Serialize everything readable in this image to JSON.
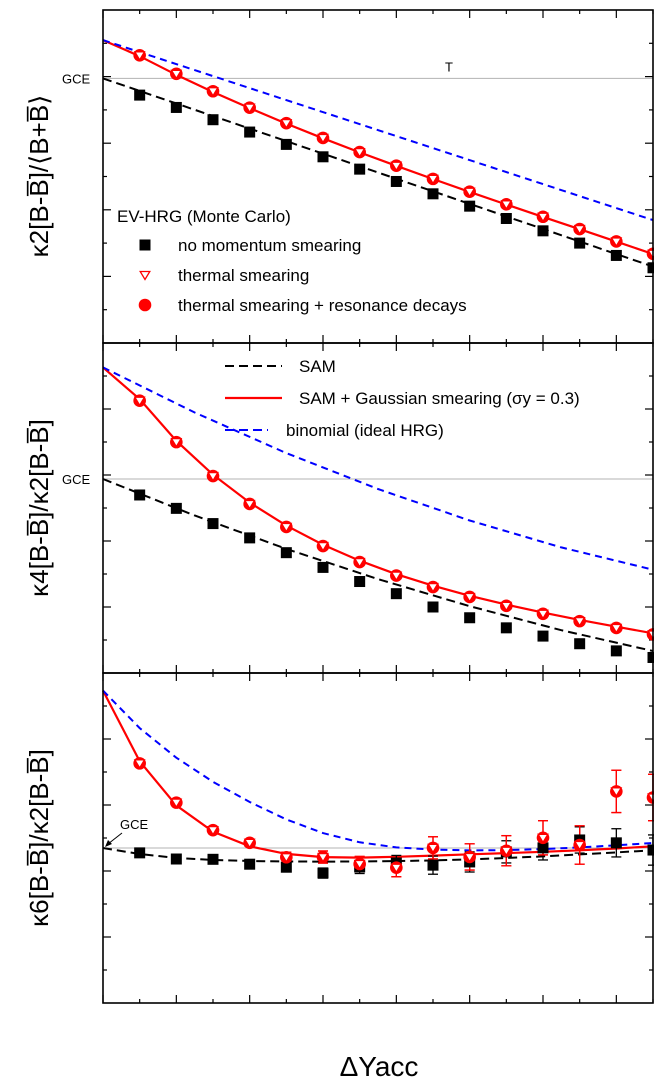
{
  "chart_data": [
    {
      "type": "line",
      "panel": "top",
      "ylabel": "κ2[B-B̅]/⟨B+B̅⟩",
      "xlabel": "ΔYacc",
      "xlim": [
        0,
        1.5
      ],
      "ylim": [
        0.58,
        1.055
      ],
      "reference_line": {
        "label": "GCE",
        "y": 0.9574
      },
      "marker_text": "T",
      "legend_title": "EV-HRG (Monte Carlo)",
      "legend": [
        {
          "label": "no momentum smearing",
          "marker": "square",
          "color": "#000000"
        },
        {
          "label": "thermal smearing",
          "marker": "open-triangle-down",
          "color": "#ff0000"
        },
        {
          "label": "thermal smearing + resonance decays",
          "marker": "circle",
          "color": "#ff0000"
        }
      ],
      "x": [
        0.1,
        0.2,
        0.3,
        0.4,
        0.5,
        0.6,
        0.7,
        0.8,
        0.9,
        1.0,
        1.1,
        1.2,
        1.3,
        1.4,
        1.5
      ],
      "series": [
        {
          "name": "no momentum smearing",
          "style": "square",
          "color": "#000000",
          "values": [
            0.9336,
            0.916,
            0.8985,
            0.8809,
            0.8633,
            0.8456,
            0.828,
            0.8104,
            0.7928,
            0.7752,
            0.7576,
            0.74,
            0.7225,
            0.7049,
            0.6873
          ]
        },
        {
          "name": "thermal smearing",
          "style": "open-triangle-down",
          "color": "#ff0000",
          "values": [
            0.9904,
            0.964,
            0.9391,
            0.9157,
            0.8936,
            0.8725,
            0.8523,
            0.8329,
            0.8141,
            0.7958,
            0.7778,
            0.7601,
            0.7425,
            0.7249,
            0.7073
          ]
        },
        {
          "name": "thermal smearing + resonance decays",
          "style": "circle",
          "color": "#ff0000",
          "values": [
            0.9904,
            0.964,
            0.9391,
            0.9157,
            0.8936,
            0.8725,
            0.8523,
            0.8329,
            0.8141,
            0.7958,
            0.7778,
            0.7601,
            0.7425,
            0.7249,
            0.7073
          ]
        },
        {
          "name": "SAM",
          "style": "dash",
          "color": "#000000",
          "x": [
            0,
            1.5
          ],
          "values": [
            0.9574,
            0.689
          ]
        },
        {
          "name": "SAM + Gaussian smearing (σy = 0.3)",
          "style": "solid",
          "color": "#ff0000",
          "x": [
            0,
            0.1,
            0.2,
            0.3,
            0.4,
            0.5,
            0.6,
            0.7,
            0.8,
            0.9,
            1.0,
            1.1,
            1.2,
            1.3,
            1.4,
            1.5
          ],
          "values": [
            1.012,
            0.9891,
            0.9625,
            0.9381,
            0.915,
            0.893,
            0.872,
            0.8519,
            0.8327,
            0.8139,
            0.7956,
            0.7776,
            0.7599,
            0.7423,
            0.7246,
            0.707
          ]
        },
        {
          "name": "binomial (ideal HRG)",
          "style": "dash",
          "color": "#0000ff",
          "x": [
            0,
            1.5
          ],
          "values": [
            1.012,
            0.7553
          ]
        }
      ]
    },
    {
      "type": "line",
      "panel": "middle",
      "ylabel": "κ4[B-B̅]/κ2[B-B̅]",
      "xlabel": "ΔYacc",
      "xlim": [
        0,
        1.5
      ],
      "ylim": [
        0.5,
        1.04
      ],
      "reference_line": {
        "label": "GCE",
        "y": 0.8174
      },
      "legend": [
        {
          "label": "SAM",
          "style": "dash",
          "color": "#000000"
        },
        {
          "label": "SAM + Gaussian smearing (σy = 0.3)",
          "style": "solid",
          "color": "#ff0000"
        },
        {
          "label": "binomial (ideal HRG)",
          "style": "dash",
          "color": "#0000ff"
        }
      ],
      "x": [
        0.1,
        0.2,
        0.3,
        0.4,
        0.5,
        0.6,
        0.7,
        0.8,
        0.9,
        1.0,
        1.1,
        1.2,
        1.3,
        1.4,
        1.5
      ],
      "series": [
        {
          "name": "no momentum smearing",
          "style": "square",
          "color": "#000000",
          "values": [
            0.7913,
            0.7694,
            0.7445,
            0.7211,
            0.6969,
            0.6728,
            0.6497,
            0.6298,
            0.608,
            0.5904,
            0.5739,
            0.5604,
            0.5479,
            0.5362,
            0.5254
          ]
        },
        {
          "name": "thermal smearing",
          "style": "open-triangle-down",
          "color": "#ff0000",
          "values": [
            0.9456,
            0.8778,
            0.8223,
            0.7766,
            0.739,
            0.7077,
            0.6815,
            0.6594,
            0.6406,
            0.6244,
            0.6099,
            0.5969,
            0.5849,
            0.5737,
            0.5631
          ]
        },
        {
          "name": "thermal smearing + resonance decays",
          "style": "circle",
          "color": "#ff0000",
          "values": [
            0.9456,
            0.8778,
            0.8223,
            0.7766,
            0.739,
            0.7077,
            0.6815,
            0.6594,
            0.6406,
            0.6244,
            0.6099,
            0.5969,
            0.5849,
            0.5737,
            0.5631
          ]
        },
        {
          "name": "SAM",
          "style": "dash",
          "color": "#000000",
          "x": [
            0,
            0.25,
            0.5,
            0.75,
            1.0,
            1.25,
            1.5
          ],
          "values": [
            0.8174,
            0.7577,
            0.7031,
            0.6537,
            0.6093,
            0.5701,
            0.536
          ]
        },
        {
          "name": "SAM + Gaussian smearing (σy = 0.3)",
          "style": "solid",
          "color": "#ff0000",
          "x": [
            0,
            0.1,
            0.2,
            0.3,
            0.4,
            0.5,
            0.6,
            0.7,
            0.8,
            0.9,
            1.0,
            1.1,
            1.2,
            1.3,
            1.4,
            1.5
          ],
          "values": [
            1.0,
            0.948,
            0.88,
            0.8245,
            0.7788,
            0.7412,
            0.7099,
            0.6837,
            0.6616,
            0.6428,
            0.6264,
            0.6119,
            0.5989,
            0.5869,
            0.5757,
            0.565
          ]
        },
        {
          "name": "binomial (ideal HRG)",
          "style": "dash",
          "color": "#0000ff",
          "x": [
            0,
            0.25,
            0.5,
            0.75,
            1.0,
            1.25,
            1.5
          ],
          "values": [
            1.0,
            0.9263,
            0.8599,
            0.8011,
            0.7496,
            0.7056,
            0.669
          ]
        }
      ]
    },
    {
      "type": "line",
      "panel": "bottom",
      "ylabel": "κ6[B-B̅]/κ2[B-B̅]",
      "xlabel": "ΔYacc",
      "xlim": [
        0,
        1.5
      ],
      "ylim": [
        0.37,
        1.025
      ],
      "reference_line": {
        "label": "GCE",
        "y": 0.6776
      },
      "x": [
        0.1,
        0.2,
        0.3,
        0.4,
        0.5,
        0.6,
        0.7,
        0.8,
        0.9,
        1.0,
        1.1,
        1.2,
        1.3,
        1.4,
        1.5
      ],
      "series": [
        {
          "name": "no momentum smearing",
          "style": "square",
          "color": "#000000",
          "values": [
            0.668,
            0.6558,
            0.6552,
            0.6455,
            0.6395,
            0.6279,
            0.64,
            0.6479,
            0.6436,
            0.65,
            0.67,
            0.6779,
            0.6936,
            0.6879,
            0.6736
          ],
          "errors": [
            0.004,
            0.005,
            0.005,
            0.006,
            0.008,
            0.01,
            0.013,
            0.015,
            0.018,
            0.02,
            0.022,
            0.024,
            0.026,
            0.028,
            0.03
          ]
        },
        {
          "name": "thermal smearing",
          "style": "open-triangle-down",
          "color": "#ff0000",
          "values": [
            0.8456,
            0.7677,
            0.7131,
            0.6879,
            0.6593,
            0.6597,
            0.6459,
            0.6386,
            0.6779,
            0.6599,
            0.6722,
            0.6979,
            0.6836,
            0.79,
            0.7779
          ],
          "errors": [
            0.004,
            0.005,
            0.006,
            0.007,
            0.01,
            0.012,
            0.015,
            0.018,
            0.022,
            0.026,
            0.03,
            0.034,
            0.038,
            0.042,
            0.046
          ]
        },
        {
          "name": "thermal smearing + resonance decays",
          "style": "circle",
          "color": "#ff0000",
          "values": [
            0.8456,
            0.7677,
            0.7131,
            0.6879,
            0.6593,
            0.6597,
            0.6459,
            0.6386,
            0.6779,
            0.6599,
            0.6722,
            0.6979,
            0.6836,
            0.79,
            0.7779
          ],
          "errors": [
            0.004,
            0.005,
            0.006,
            0.007,
            0.01,
            0.012,
            0.015,
            0.018,
            0.022,
            0.026,
            0.03,
            0.034,
            0.038,
            0.042,
            0.046
          ]
        },
        {
          "name": "SAM",
          "style": "dash",
          "color": "#000000",
          "x": [
            0,
            0.1,
            0.2,
            0.3,
            0.4,
            0.5,
            0.6,
            0.7,
            0.8,
            0.9,
            1.0,
            1.1,
            1.2,
            1.3,
            1.4,
            1.5
          ],
          "values": [
            0.6776,
            0.6657,
            0.6578,
            0.6538,
            0.6519,
            0.6508,
            0.6506,
            0.6509,
            0.6517,
            0.653,
            0.6551,
            0.6578,
            0.661,
            0.6649,
            0.669,
            0.673
          ]
        },
        {
          "name": "SAM + Gaussian smearing (σy = 0.3)",
          "style": "solid",
          "color": "#ff0000",
          "x": [
            0,
            0.1,
            0.2,
            0.3,
            0.4,
            0.5,
            0.6,
            0.7,
            0.8,
            0.9,
            1.0,
            1.1,
            1.2,
            1.3,
            1.4,
            1.5
          ],
          "values": [
            0.99,
            0.8498,
            0.7623,
            0.7102,
            0.681,
            0.6659,
            0.6596,
            0.6586,
            0.6601,
            0.6626,
            0.6651,
            0.6676,
            0.6702,
            0.6731,
            0.6766,
            0.681
          ]
        },
        {
          "name": "binomial (ideal HRG)",
          "style": "dash",
          "color": "#0000ff",
          "x": [
            0,
            0.1,
            0.2,
            0.3,
            0.4,
            0.5,
            0.6,
            0.7,
            0.8,
            0.9,
            1.0,
            1.1,
            1.2,
            1.3,
            1.4,
            1.5
          ],
          "values": [
            0.99,
            0.9156,
            0.8568,
            0.809,
            0.769,
            0.7345,
            0.7073,
            0.689,
            0.6789,
            0.6744,
            0.6729,
            0.6734,
            0.6754,
            0.6788,
            0.683,
            0.6876
          ]
        }
      ]
    }
  ]
}
